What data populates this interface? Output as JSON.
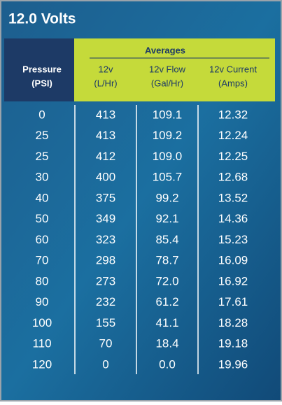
{
  "title": "12.0 Volts",
  "header": {
    "group": "Averages",
    "columns": [
      [
        "Pressure",
        "(PSI)"
      ],
      [
        "12v",
        "(L/Hr)"
      ],
      [
        "12v Flow",
        "(Gal/Hr)"
      ],
      [
        "12v Current",
        "(Amps)"
      ]
    ]
  },
  "table": {
    "rows": [
      [
        "0",
        "413",
        "109.1",
        "12.32"
      ],
      [
        "25",
        "413",
        "109.2",
        "12.24"
      ],
      [
        "25",
        "412",
        "109.0",
        "12.25"
      ],
      [
        "30",
        "400",
        "105.7",
        "12.68"
      ],
      [
        "40",
        "375",
        "99.2",
        "13.52"
      ],
      [
        "50",
        "349",
        "92.1",
        "14.36"
      ],
      [
        "60",
        "323",
        "85.4",
        "15.23"
      ],
      [
        "70",
        "298",
        "78.7",
        "16.09"
      ],
      [
        "80",
        "273",
        "72.0",
        "16.92"
      ],
      [
        "90",
        "232",
        "61.2",
        "17.61"
      ],
      [
        "100",
        "155",
        "41.1",
        "18.28"
      ],
      [
        "110",
        "70",
        "18.4",
        "19.18"
      ],
      [
        "120",
        "0",
        "0.0",
        "19.96"
      ]
    ]
  }
}
